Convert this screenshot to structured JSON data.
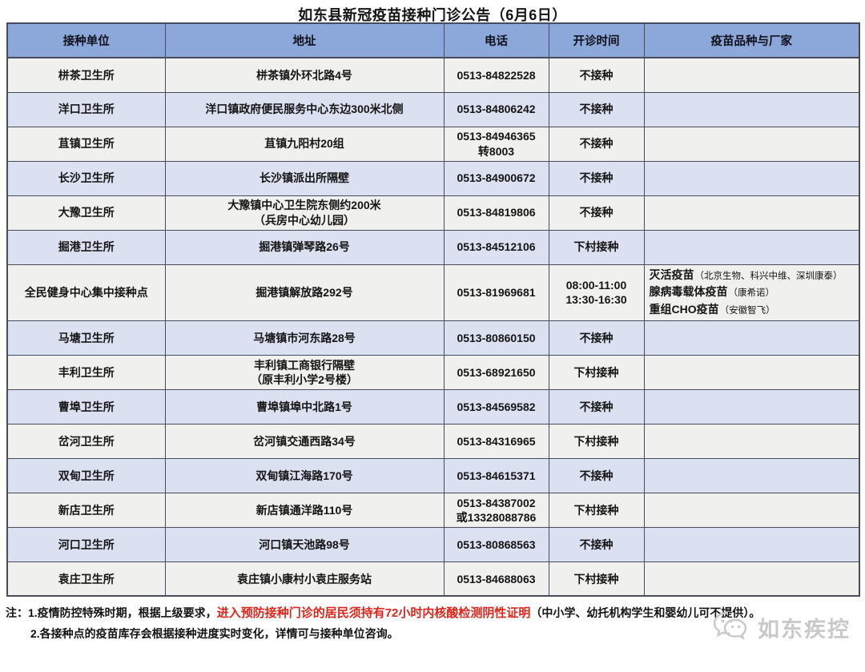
{
  "title": "如东县新冠疫苗接种门诊公告（6月6日）",
  "table": {
    "headers": [
      "接种单位",
      "地址",
      "电话",
      "开诊时间",
      "疫苗品种与厂家"
    ],
    "rows": [
      {
        "unit": "栟茶卫生所",
        "address": "栟茶镇外环北路4号",
        "phone": "0513-84822528",
        "hours": "不接种",
        "vaccines": []
      },
      {
        "unit": "洋口卫生所",
        "address": "洋口镇政府便民服务中心东边300米北侧",
        "phone": "0513-84806242",
        "hours": "不接种",
        "vaccines": []
      },
      {
        "unit": "苴镇卫生所",
        "address": "苴镇九阳村20组",
        "phone": "0513-84946365\n转8003",
        "hours": "不接种",
        "vaccines": []
      },
      {
        "unit": "长沙卫生所",
        "address": "长沙镇派出所隔壁",
        "phone": "0513-84900672",
        "hours": "不接种",
        "vaccines": []
      },
      {
        "unit": "大豫卫生所",
        "address": "大豫镇中心卫生院东侧约200米\n（兵房中心幼儿园）",
        "phone": "0513-84819806",
        "hours": "不接种",
        "vaccines": []
      },
      {
        "unit": "掘港卫生所",
        "address": "掘港镇弹琴路26号",
        "phone": "0513-84512106",
        "hours": "下村接种",
        "vaccines": []
      },
      {
        "unit": "全民健身中心集中接种点",
        "address": "掘港镇解放路292号",
        "phone": "0513-81969681",
        "hours": "08:00-11:00\n13:30-16:30",
        "vaccines": [
          {
            "name": "灭活疫苗",
            "makers": "（北京生物、科兴中维、深圳康泰）"
          },
          {
            "name": "腺病毒载体疫苗",
            "makers": "（康希诺）"
          },
          {
            "name": "重组CHO疫苗",
            "makers": "（安徽智飞）"
          }
        ]
      },
      {
        "unit": "马塘卫生所",
        "address": "马塘镇市河东路28号",
        "phone": "0513-80860150",
        "hours": "不接种",
        "vaccines": []
      },
      {
        "unit": "丰利卫生所",
        "address": "丰利镇工商银行隔壁\n（原丰利小学2号楼）",
        "phone": "0513-68921650",
        "hours": "下村接种",
        "vaccines": []
      },
      {
        "unit": "曹埠卫生所",
        "address": "曹埠镇埠中北路1号",
        "phone": "0513-84569582",
        "hours": "不接种",
        "vaccines": []
      },
      {
        "unit": "岔河卫生所",
        "address": "岔河镇交通西路34号",
        "phone": "0513-84316965",
        "hours": "下村接种",
        "vaccines": []
      },
      {
        "unit": "双甸卫生所",
        "address": "双甸镇江海路170号",
        "phone": "0513-84615371",
        "hours": "不接种",
        "vaccines": []
      },
      {
        "unit": "新店卫生所",
        "address": "新店镇通洋路110号",
        "phone": "0513-84387002\n或13328088786",
        "hours": "下村接种",
        "vaccines": []
      },
      {
        "unit": "河口卫生所",
        "address": "河口镇天池路98号",
        "phone": "0513-80868563",
        "hours": "不接种",
        "vaccines": []
      },
      {
        "unit": "袁庄卫生所",
        "address": "袁庄镇小康村小袁庄服务站",
        "phone": "0513-84688063",
        "hours": "下村接种",
        "vaccines": []
      }
    ]
  },
  "notes": {
    "line1_prefix": "注：1.疫情防控特殊时期，根据上级要求，",
    "line1_highlight": "进入预防接种门诊的居民须持有72小时内核酸检测阴性证明",
    "line1_suffix": "（中小学、幼托机构学生和婴幼儿可不提供）。",
    "line2": "2.各接种点的疫苗库存会根据接种进度实时变化，详情可与接种单位咨询。"
  },
  "watermark": {
    "text": "如东疾控",
    "icon": "wechat-chat-bubbles-icon"
  },
  "colors": {
    "header_bg": "#8ca8da",
    "row_blue": "#dce1f2",
    "row_gray": "#f0f0ee",
    "border": "#474c5c",
    "red": "#e02419",
    "watermark": "#c9c9c9"
  }
}
